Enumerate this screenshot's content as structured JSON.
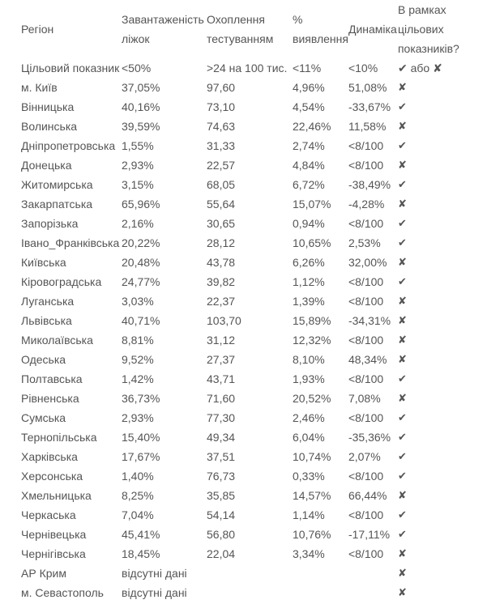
{
  "header": {
    "region": "Регіон",
    "beds": [
      "Завантаженість",
      "ліжок"
    ],
    "testing": [
      "Охоплення",
      "тестуванням"
    ],
    "detection": [
      "%",
      "виявлення"
    ],
    "dynamics": "Динаміка",
    "in_target": [
      "В рамках",
      "цільових",
      "показників?"
    ]
  },
  "target": {
    "label": "Цільовий показник",
    "beds": "<50%",
    "testing": ">24 на 100 тис.",
    "detection": "<11%",
    "dynamics": "<10%",
    "in_target": "✔ або ✘"
  },
  "rows": [
    {
      "region": "м. Київ",
      "beds": "37,05%",
      "testing": "97,60",
      "detection": "4,96%",
      "dynamics": "51,08%",
      "ok": "✘"
    },
    {
      "region": "Вінницька",
      "beds": "40,16%",
      "testing": "73,10",
      "detection": "4,54%",
      "dynamics": "-33,67%",
      "ok": "✔"
    },
    {
      "region": "Волинська",
      "beds": "39,59%",
      "testing": "74,63",
      "detection": "22,46%",
      "dynamics": "11,58%",
      "ok": "✘"
    },
    {
      "region": "Дніпропетровська",
      "beds": "1,55%",
      "testing": "31,33",
      "detection": "2,74%",
      "dynamics": "<8/100",
      "ok": "✔"
    },
    {
      "region": "Донецька",
      "beds": "2,93%",
      "testing": "22,57",
      "detection": "4,84%",
      "dynamics": "<8/100",
      "ok": "✘"
    },
    {
      "region": "Житомирська",
      "beds": "3,15%",
      "testing": "68,05",
      "detection": "6,72%",
      "dynamics": "-38,49%",
      "ok": "✔"
    },
    {
      "region": "Закарпатська",
      "beds": "65,96%",
      "testing": "55,64",
      "detection": "15,07%",
      "dynamics": "-4,28%",
      "ok": "✘"
    },
    {
      "region": "Запорізька",
      "beds": "2,16%",
      "testing": "30,65",
      "detection": "0,94%",
      "dynamics": "<8/100",
      "ok": "✔"
    },
    {
      "region": "Івано_Франківська",
      "beds": "20,22%",
      "testing": "28,12",
      "detection": "10,65%",
      "dynamics": "2,53%",
      "ok": "✔"
    },
    {
      "region": "Київська",
      "beds": "20,48%",
      "testing": "43,78",
      "detection": "6,26%",
      "dynamics": "32,00%",
      "ok": "✘"
    },
    {
      "region": "Кіровоградська",
      "beds": "24,77%",
      "testing": "39,82",
      "detection": "1,12%",
      "dynamics": "<8/100",
      "ok": "✔"
    },
    {
      "region": "Луганська",
      "beds": "3,03%",
      "testing": "22,37",
      "detection": "1,39%",
      "dynamics": "<8/100",
      "ok": "✘"
    },
    {
      "region": "Львівська",
      "beds": "40,71%",
      "testing": "103,70",
      "detection": "15,89%",
      "dynamics": "-34,31%",
      "ok": "✘"
    },
    {
      "region": "Миколаївська",
      "beds": "8,81%",
      "testing": "31,12",
      "detection": "12,32%",
      "dynamics": "<8/100",
      "ok": "✘"
    },
    {
      "region": "Одеська",
      "beds": "9,52%",
      "testing": "27,37",
      "detection": "8,10%",
      "dynamics": "48,34%",
      "ok": "✘"
    },
    {
      "region": "Полтавська",
      "beds": "1,42%",
      "testing": "43,71",
      "detection": "1,93%",
      "dynamics": "<8/100",
      "ok": "✔"
    },
    {
      "region": "Рівненська",
      "beds": "36,73%",
      "testing": "71,60",
      "detection": "20,52%",
      "dynamics": "7,08%",
      "ok": "✘"
    },
    {
      "region": "Сумська",
      "beds": "2,93%",
      "testing": "77,30",
      "detection": "2,46%",
      "dynamics": "<8/100",
      "ok": "✔"
    },
    {
      "region": "Тернопільська",
      "beds": "15,40%",
      "testing": "49,34",
      "detection": "6,04%",
      "dynamics": "-35,36%",
      "ok": "✔"
    },
    {
      "region": "Харківська",
      "beds": "17,67%",
      "testing": "37,51",
      "detection": "10,74%",
      "dynamics": "2,07%",
      "ok": "✔"
    },
    {
      "region": "Херсонська",
      "beds": "1,40%",
      "testing": "76,73",
      "detection": "0,33%",
      "dynamics": "<8/100",
      "ok": "✔"
    },
    {
      "region": "Хмельницька",
      "beds": "8,25%",
      "testing": "35,85",
      "detection": "14,57%",
      "dynamics": "66,44%",
      "ok": "✘"
    },
    {
      "region": "Черкаська",
      "beds": "7,04%",
      "testing": "54,14",
      "detection": "1,14%",
      "dynamics": "<8/100",
      "ok": "✔"
    },
    {
      "region": "Чернівецька",
      "beds": "45,41%",
      "testing": "56,80",
      "detection": "10,76%",
      "dynamics": "-17,11%",
      "ok": "✔"
    },
    {
      "region": "Чернігівська",
      "beds": "18,45%",
      "testing": "22,04",
      "detection": "3,34%",
      "dynamics": "<8/100",
      "ok": "✘"
    },
    {
      "region": "АР Крим",
      "beds": "відсутні дані",
      "testing": "",
      "detection": "",
      "dynamics": "",
      "ok": "✘"
    },
    {
      "region": "м. Севастополь",
      "beds": "відсутні дані",
      "testing": "",
      "detection": "",
      "dynamics": "",
      "ok": "✘"
    }
  ]
}
